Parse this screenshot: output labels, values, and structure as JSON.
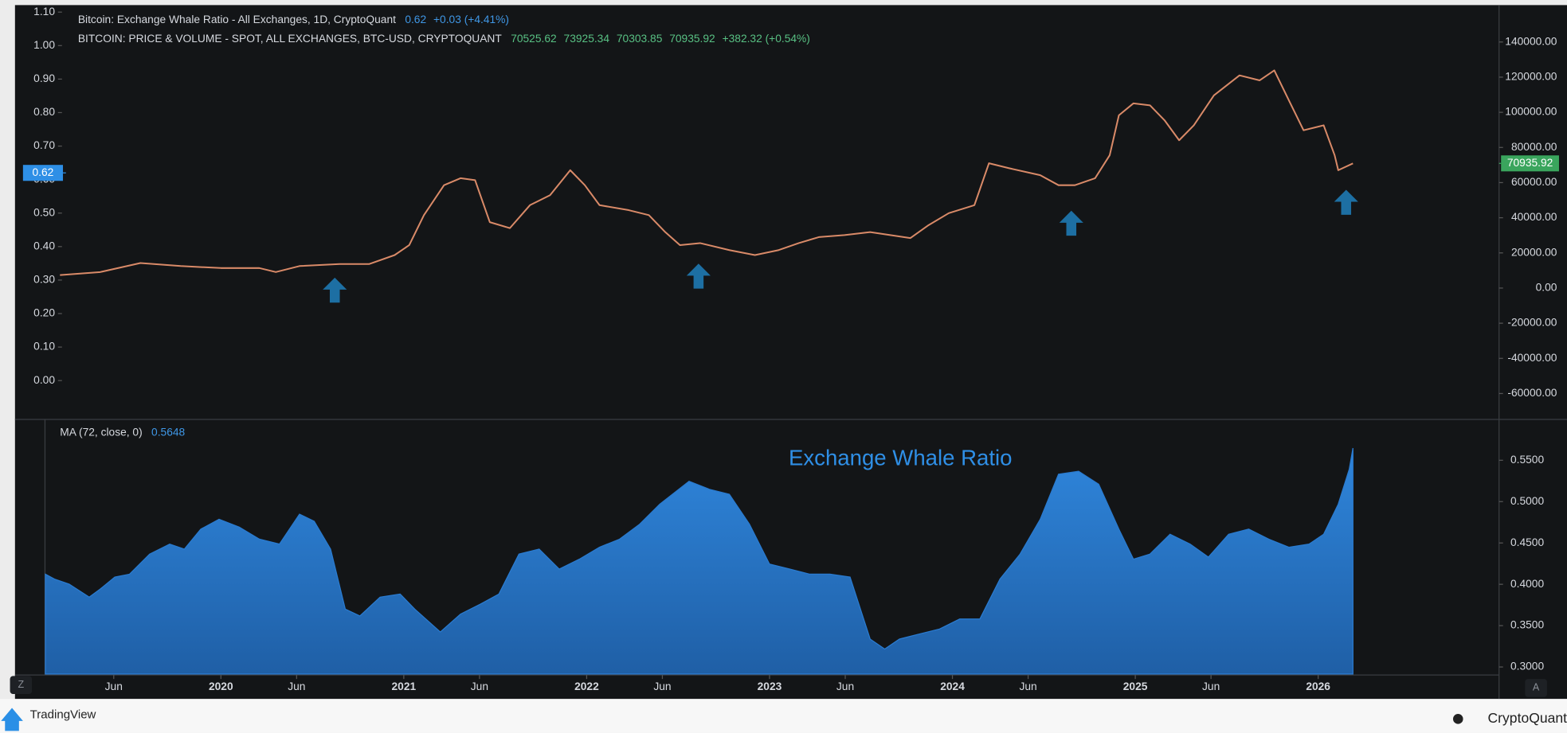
{
  "chart_data": [
    {
      "type": "line",
      "title": "Bitcoin: Exchange Whale Ratio - All Exchanges, 1D, CryptoQuant",
      "title_value": 0.62,
      "title_change": "+0.03 (+4.41%)",
      "subtitle": "BITCOIN: PRICE & VOLUME - SPOT, ALL EXCHANGES, BTC-USD, CRYPTOQUANT",
      "ohlc": [
        70525.62,
        73925.34,
        70303.85,
        70935.92
      ],
      "change": "+382.32 (+0.54%)",
      "x": [
        2019.12,
        2019.34,
        2019.56,
        2019.78,
        2020.0,
        2020.21,
        2020.3,
        2020.43,
        2020.65,
        2020.81,
        2020.95,
        2021.03,
        2021.11,
        2021.22,
        2021.31,
        2021.39,
        2021.47,
        2021.58,
        2021.69,
        2021.8,
        2021.91,
        2021.99,
        2022.07,
        2022.23,
        2022.34,
        2022.43,
        2022.51,
        2022.62,
        2022.78,
        2022.92,
        2023.05,
        2023.16,
        2023.27,
        2023.41,
        2023.55,
        2023.66,
        2023.77,
        2023.87,
        2023.98,
        2024.12,
        2024.2,
        2024.31,
        2024.48,
        2024.58,
        2024.67,
        2024.78,
        2024.86,
        2024.91,
        2024.99,
        2025.08,
        2025.16,
        2025.24,
        2025.32,
        2025.43,
        2025.57,
        2025.68,
        2025.76,
        2025.84,
        2025.92,
        2026.03,
        2026.09,
        2026.11,
        2026.19
      ],
      "series": [
        {
          "color": "#d98a68",
          "axis": "y2",
          "values": [
            7386,
            9091,
            14205,
            12500,
            11364,
            11364,
            9091,
            12500,
            13636,
            13636,
            18750,
            24432,
            41477,
            58523,
            62500,
            61364,
            37500,
            34091,
            47159,
            52841,
            67045,
            58523,
            47159,
            44318,
            41477,
            31818,
            24432,
            25568,
            21591,
            18750,
            21591,
            25568,
            28977,
            30114,
            31818,
            30114,
            28409,
            35795,
            42614,
            47159,
            71023,
            68182,
            64205,
            58523,
            58523,
            62500,
            75568,
            98295,
            105114,
            103977,
            95455,
            84091,
            92614,
            109659,
            121023,
            118182,
            123864,
            106818,
            89773,
            92614,
            75568,
            67045,
            70935.92
          ]
        }
      ],
      "xlim": [
        2018.874,
        2026.989
      ],
      "ylim": [
        -0.11,
        1.112
      ],
      "yticks": [
        {
          "value": 0,
          "label": "0.00"
        },
        {
          "value": 0.1,
          "label": "0.10"
        },
        {
          "value": 0.2,
          "label": "0.20"
        },
        {
          "value": 0.3,
          "label": "0.30"
        },
        {
          "value": 0.4,
          "label": "0.40"
        },
        {
          "value": 0.5,
          "label": "0.50"
        },
        {
          "value": 0.6,
          "label": "0.60"
        },
        {
          "value": 0.7,
          "label": "0.70"
        },
        {
          "value": 0.8,
          "label": "0.80"
        },
        {
          "value": 0.9,
          "label": "0.90"
        },
        {
          "value": 1.0,
          "label": "1.00"
        },
        {
          "value": 1.1,
          "label": "1.10"
        }
      ],
      "y2lim": [
        -73600,
        159300
      ],
      "y2ticks": [
        {
          "value": -60000,
          "label": "-60000.00"
        },
        {
          "value": -40000,
          "label": "-40000.00"
        },
        {
          "value": -20000,
          "label": "-20000.00"
        },
        {
          "value": 0,
          "label": "0.00"
        },
        {
          "value": 20000,
          "label": "20000.00"
        },
        {
          "value": 40000,
          "label": "40000.00"
        },
        {
          "value": 60000,
          "label": "60000.00"
        },
        {
          "value": 80000,
          "label": "80000.00"
        },
        {
          "value": 100000,
          "label": "100000.00"
        },
        {
          "value": 120000,
          "label": "120000.00"
        },
        {
          "value": 140000,
          "label": "140000.00"
        }
      ]
    },
    {
      "type": "area",
      "title": "MA (72, close, 0)",
      "title_value": 0.5648,
      "annotation": "Exchange Whale Ratio",
      "x": [
        2019.04,
        2019.09,
        2019.17,
        2019.28,
        2019.34,
        2019.42,
        2019.5,
        2019.61,
        2019.72,
        2019.8,
        2019.89,
        2019.99,
        2020.1,
        2020.21,
        2020.32,
        2020.43,
        2020.51,
        2020.6,
        2020.68,
        2020.76,
        2020.87,
        2020.98,
        2021.06,
        2021.2,
        2021.31,
        2021.42,
        2021.52,
        2021.63,
        2021.74,
        2021.85,
        2021.96,
        2022.07,
        2022.18,
        2022.29,
        2022.4,
        2022.56,
        2022.67,
        2022.78,
        2022.89,
        2023.0,
        2023.11,
        2023.22,
        2023.33,
        2023.44,
        2023.55,
        2023.63,
        2023.71,
        2023.82,
        2023.93,
        2024.04,
        2024.15,
        2024.26,
        2024.37,
        2024.48,
        2024.58,
        2024.69,
        2024.8,
        2024.91,
        2024.99,
        2025.08,
        2025.19,
        2025.3,
        2025.4,
        2025.51,
        2025.62,
        2025.73,
        2025.84,
        2025.95,
        2026.03,
        2026.11,
        2026.17,
        2026.19
      ],
      "series": [
        {
          "color": "#2a7bd0",
          "values": [
            0.4123,
            0.4063,
            0.4002,
            0.3845,
            0.3942,
            0.4087,
            0.4123,
            0.4365,
            0.4486,
            0.4425,
            0.4667,
            0.4787,
            0.4691,
            0.4546,
            0.4486,
            0.4848,
            0.4763,
            0.4425,
            0.37,
            0.3616,
            0.3845,
            0.3882,
            0.37,
            0.3423,
            0.364,
            0.3761,
            0.3882,
            0.4365,
            0.4425,
            0.4184,
            0.4304,
            0.4449,
            0.4546,
            0.4727,
            0.4969,
            0.5246,
            0.515,
            0.5089,
            0.4727,
            0.4244,
            0.4184,
            0.4123,
            0.4123,
            0.4087,
            0.3338,
            0.3217,
            0.3338,
            0.3399,
            0.3459,
            0.358,
            0.358,
            0.4063,
            0.4365,
            0.4787,
            0.5331,
            0.5367,
            0.521,
            0.4667,
            0.4304,
            0.4365,
            0.4606,
            0.4486,
            0.4329,
            0.4606,
            0.4667,
            0.4546,
            0.4449,
            0.4486,
            0.4606,
            0.4969,
            0.5391,
            0.5648
          ]
        }
      ],
      "xlim": [
        2018.874,
        2026.989
      ],
      "ylim": [
        0.2915,
        0.597
      ],
      "yticks": [
        {
          "value": 0.3,
          "label": "0.3000"
        },
        {
          "value": 0.35,
          "label": "0.3500"
        },
        {
          "value": 0.4,
          "label": "0.4000"
        },
        {
          "value": 0.45,
          "label": "0.4500"
        },
        {
          "value": 0.5,
          "label": "0.5000"
        },
        {
          "value": 0.55,
          "label": "0.5500"
        }
      ],
      "xticks": [
        {
          "value": 2019.414,
          "label": "Jun"
        },
        2020,
        {
          "value": 2020.414,
          "label": "Jun"
        },
        2021,
        {
          "value": 2021.414,
          "label": "Jun"
        },
        2022,
        {
          "value": 2022.414,
          "label": "Jun"
        },
        2023,
        {
          "value": 2023.414,
          "label": "Jun"
        },
        2024,
        {
          "value": 2024.414,
          "label": "Jun"
        },
        2025,
        {
          "value": 2025.414,
          "label": "Jun"
        },
        2026
      ]
    }
  ],
  "footer": {
    "left": "TradingView",
    "right": "CryptoQuant"
  },
  "buttons": [
    "Z",
    "A"
  ]
}
